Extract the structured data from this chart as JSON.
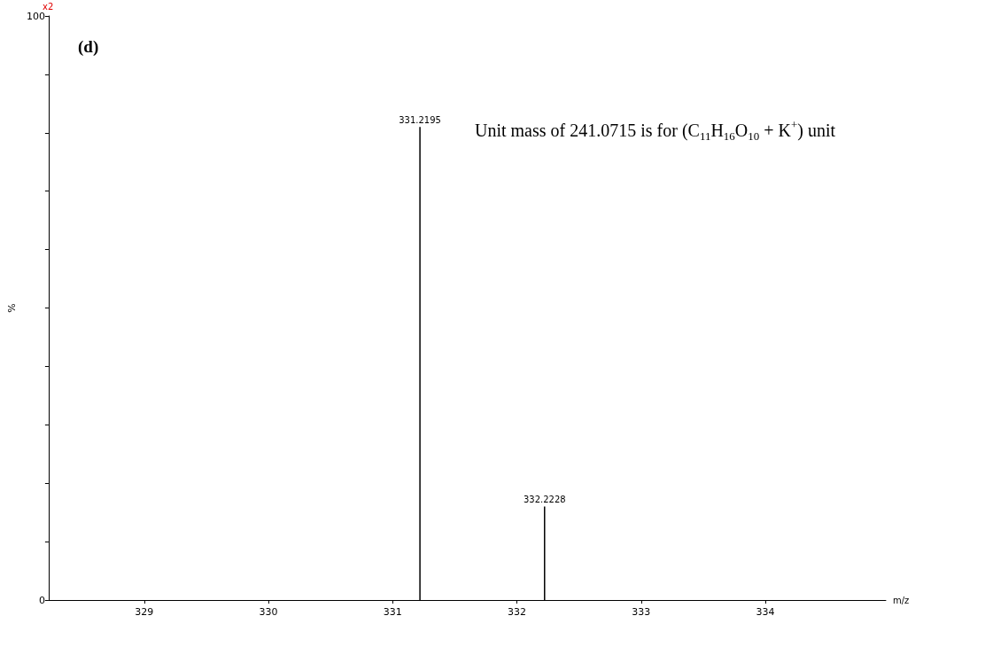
{
  "chart_data": {
    "type": "bar",
    "xlabel": "m/z",
    "ylabel": "%",
    "x": [
      331.2195,
      332.2228
    ],
    "series": [
      {
        "color": "#000000",
        "values": [
          81,
          16
        ]
      }
    ],
    "xlim": [
      328.23,
      334.97
    ],
    "xticks": [
      329,
      330,
      331,
      332,
      333,
      334
    ],
    "ylim": [
      0,
      100
    ],
    "yticks": [
      0,
      {
        "value": 10,
        "label": null
      },
      {
        "value": 20,
        "label": null
      },
      {
        "value": 30,
        "label": null
      },
      {
        "value": 40,
        "label": null
      },
      {
        "value": 50,
        "label": null
      },
      {
        "value": 60,
        "label": null
      },
      {
        "value": 70,
        "label": null
      },
      {
        "value": 80,
        "label": null
      },
      {
        "value": 90,
        "label": null
      },
      100
    ],
    "grid": false,
    "annotations": [
      "(d)",
      "x2",
      "Unit mass of 241.0715 is for (C$_{11}$H$_{16}$O$_{10}$ + K$^{+}$) unit",
      {
        "text": "331.2195",
        "x": 331.2195,
        "y": 81
      },
      {
        "text": "332.2228",
        "x": 332.2228,
        "y": 16
      }
    ]
  }
}
